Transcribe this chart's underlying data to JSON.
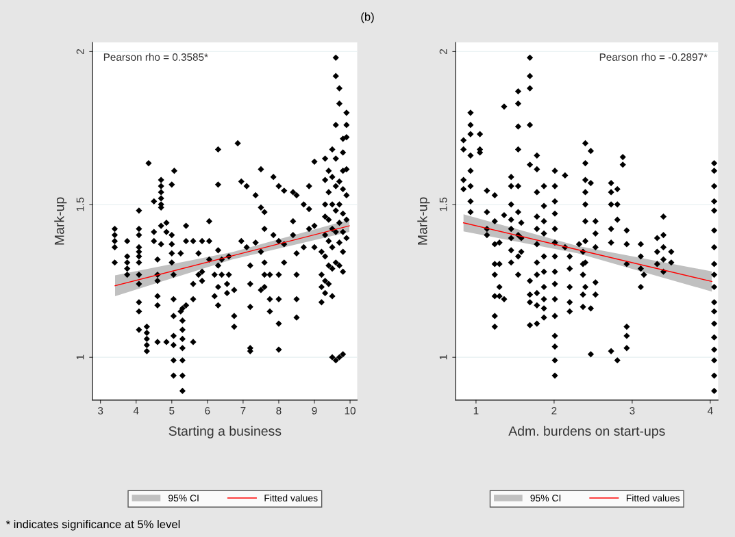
{
  "chart_data": [
    {
      "type": "scatter",
      "title": "(b)",
      "xlabel": "Starting a business",
      "ylabel": "Mark-up",
      "xlim": [
        2.78,
        10.2
      ],
      "xticks": [
        3,
        4,
        5,
        6,
        7,
        8,
        9,
        10
      ],
      "ylim": [
        0.86,
        2.03
      ],
      "yticks": [
        1,
        1.5,
        2
      ],
      "grid": "y",
      "legend": "bottom",
      "legend_title": "95% CI",
      "annotations": [
        "Pearson rho = 0.3585*",
        "* indicates significance at 5% level"
      ],
      "series": [
        {
          "marker": "diamond",
          "color": "#000000",
          "x": [
            3.4,
            3.4,
            3.4,
            3.4,
            3.4,
            3.75,
            3.75,
            3.75,
            3.75,
            3.75,
            4.08,
            4.08,
            4.08,
            4.08,
            4.08,
            4.08,
            4.08,
            4.08,
            4.08,
            4.08,
            4.08,
            4.08,
            4.3,
            4.3,
            4.3,
            4.3,
            4.3,
            4.35,
            4.5,
            4.5,
            4.5,
            4.6,
            4.6,
            4.6,
            4.6,
            4.6,
            4.6,
            4.7,
            4.7,
            4.7,
            4.7,
            4.7,
            4.7,
            4.7,
            4.7,
            4.85,
            4.85,
            4.85,
            5.0,
            5.0,
            5.0,
            5.0,
            5.0,
            5.05,
            5.05,
            5.05,
            5.05,
            5.05,
            5.05,
            5.05,
            5.07,
            5.25,
            5.25,
            5.3,
            5.3,
            5.3,
            5.3,
            5.3,
            5.3,
            5.3,
            5.3,
            5.4,
            5.4,
            5.4,
            5.6,
            5.6,
            5.6,
            5.6,
            5.75,
            5.75,
            5.85,
            5.85,
            5.85,
            6.05,
            6.05,
            6.05,
            6.2,
            6.2,
            6.3,
            6.3,
            6.3,
            6.3,
            6.3,
            6.3,
            6.4,
            6.4,
            6.55,
            6.55,
            6.6,
            6.6,
            6.75,
            6.75,
            6.75,
            6.85,
            6.95,
            6.95,
            7.1,
            7.1,
            7.2,
            7.2,
            7.2,
            7.2,
            7.2,
            7.35,
            7.35,
            7.5,
            7.5,
            7.5,
            7.5,
            7.6,
            7.6,
            7.6,
            7.6,
            7.6,
            7.75,
            7.75,
            7.75,
            7.85,
            7.85,
            8.0,
            8.0,
            8.0,
            8.0,
            8.0,
            8.0,
            8.15,
            8.15,
            8.15,
            8.4,
            8.4,
            8.4,
            8.5,
            8.5,
            8.5,
            8.5,
            8.5,
            8.7,
            8.7,
            8.85,
            8.85,
            8.85,
            9.0,
            9.0,
            9.0,
            9.2,
            9.2,
            9.2,
            9.2,
            9.3,
            9.3,
            9.3,
            9.3,
            9.3,
            9.3,
            9.3,
            9.3,
            9.4,
            9.4,
            9.4,
            9.4,
            9.4,
            9.4,
            9.5,
            9.5,
            9.5,
            9.5,
            9.5,
            9.5,
            9.5,
            9.5,
            9.6,
            9.6,
            9.6,
            9.6,
            9.6,
            9.6,
            9.6,
            9.6,
            9.6,
            9.7,
            9.7,
            9.7,
            9.7,
            9.7,
            9.7,
            9.7,
            9.7,
            9.8,
            9.8,
            9.8,
            9.8,
            9.8,
            9.8,
            9.8,
            9.8,
            9.8,
            9.9,
            9.9,
            9.9,
            9.9,
            9.9,
            9.9,
            9.9
          ],
          "values": [
            1.42,
            1.4,
            1.38,
            1.36,
            1.31,
            1.38,
            1.33,
            1.31,
            1.29,
            1.27,
            1.48,
            1.42,
            1.4,
            1.36,
            1.345,
            1.33,
            1.31,
            1.27,
            1.24,
            1.18,
            1.15,
            1.09,
            1.1,
            1.08,
            1.06,
            1.04,
            1.02,
            1.635,
            1.51,
            1.41,
            1.38,
            1.32,
            1.27,
            1.25,
            1.2,
            1.17,
            1.05,
            1.58,
            1.56,
            1.54,
            1.52,
            1.5,
            1.49,
            1.43,
            1.37,
            1.44,
            1.41,
            1.05,
            1.565,
            1.4,
            1.37,
            1.34,
            1.31,
            1.27,
            1.19,
            1.135,
            1.07,
            1.04,
            0.99,
            0.94,
            1.61,
            1.34,
            1.15,
            1.16,
            1.12,
            1.09,
            1.06,
            1.03,
            0.99,
            0.94,
            0.89,
            1.43,
            1.38,
            1.17,
            1.38,
            1.24,
            1.19,
            1.05,
            1.34,
            1.27,
            1.38,
            1.28,
            1.25,
            1.445,
            1.38,
            1.32,
            1.27,
            1.2,
            1.68,
            1.565,
            1.35,
            1.3,
            1.23,
            1.17,
            1.32,
            1.27,
            1.24,
            1.21,
            1.33,
            1.27,
            1.22,
            1.135,
            1.1,
            1.7,
            1.575,
            1.38,
            1.56,
            1.36,
            1.3,
            1.24,
            1.165,
            1.03,
            1.02,
            1.53,
            1.375,
            1.615,
            1.49,
            1.345,
            1.22,
            1.475,
            1.42,
            1.31,
            1.27,
            1.23,
            1.27,
            1.19,
            1.15,
            1.59,
            1.4,
            1.56,
            1.38,
            1.27,
            1.19,
            1.11,
            1.025,
            1.545,
            1.37,
            1.31,
            1.54,
            1.445,
            1.4,
            1.53,
            1.34,
            1.27,
            1.19,
            1.13,
            1.5,
            1.36,
            1.56,
            1.485,
            1.42,
            1.64,
            1.43,
            1.36,
            1.345,
            1.27,
            1.23,
            1.18,
            1.65,
            1.58,
            1.5,
            1.46,
            1.4,
            1.33,
            1.25,
            1.21,
            1.61,
            1.54,
            1.45,
            1.38,
            1.3,
            1.24,
            1.68,
            1.59,
            1.5,
            1.42,
            1.36,
            1.29,
            1.2,
            1.0,
            1.98,
            1.92,
            1.76,
            1.65,
            1.56,
            1.48,
            1.41,
            1.31,
            0.99,
            1.88,
            1.83,
            1.575,
            1.5,
            1.44,
            1.375,
            1.3,
            1.0,
            1.715,
            1.67,
            1.61,
            1.55,
            1.47,
            1.41,
            1.345,
            1.28,
            1.01,
            1.8,
            1.76,
            1.72,
            1.615,
            1.53,
            1.45,
            1.39
          ]
        },
        {
          "type": "line",
          "name": "Fitted values",
          "color": "#ff0000",
          "x": [
            3.41,
            6.7,
            9.98
          ],
          "values": [
            1.234,
            1.332,
            1.43
          ],
          "lower": [
            1.2,
            1.32,
            1.41
          ],
          "upper": [
            1.268,
            1.344,
            1.45
          ]
        }
      ]
    },
    {
      "type": "scatter",
      "xlabel": "Adm. burdens on start-ups",
      "ylabel": "Mark-up",
      "xlim": [
        0.74,
        4.1
      ],
      "xticks": [
        1,
        2,
        3,
        4
      ],
      "ylim": [
        0.86,
        2.03
      ],
      "yticks": [
        1,
        1.5,
        2
      ],
      "grid": "y",
      "legend": "bottom",
      "legend_title": "95% CI",
      "annotations": [
        "Pearson rho = -0.2897*"
      ],
      "series": [
        {
          "marker": "diamond",
          "color": "#000000",
          "x": [
            0.84,
            0.84,
            0.84,
            0.84,
            0.93,
            0.93,
            0.93,
            0.93,
            0.93,
            0.93,
            0.93,
            0.93,
            1.05,
            1.05,
            1.05,
            1.14,
            1.14,
            1.14,
            1.14,
            1.24,
            1.24,
            1.24,
            1.24,
            1.24,
            1.24,
            1.24,
            1.24,
            1.3,
            1.3,
            1.3,
            1.3,
            1.36,
            1.36,
            1.36,
            1.45,
            1.45,
            1.45,
            1.45,
            1.45,
            1.45,
            1.45,
            1.45,
            1.54,
            1.54,
            1.54,
            1.54,
            1.54,
            1.54,
            1.54,
            1.54,
            1.54,
            1.58,
            1.58,
            1.58,
            1.69,
            1.69,
            1.69,
            1.69,
            1.69,
            1.69,
            1.69,
            1.69,
            1.69,
            1.78,
            1.78,
            1.78,
            1.78,
            1.78,
            1.78,
            1.78,
            1.78,
            1.78,
            1.78,
            1.78,
            1.87,
            1.87,
            1.87,
            1.87,
            1.87,
            1.87,
            1.87,
            1.87,
            1.87,
            1.87,
            2.01,
            2.01,
            2.01,
            2.01,
            2.01,
            2.01,
            2.01,
            2.01,
            2.01,
            2.01,
            2.01,
            2.01,
            2.01,
            2.01,
            2.01,
            2.14,
            2.14,
            2.2,
            2.2,
            2.2,
            2.2,
            2.2,
            2.32,
            2.37,
            2.37,
            2.37,
            2.37,
            2.37,
            2.4,
            2.4,
            2.4,
            2.4,
            2.4,
            2.4,
            2.4,
            2.4,
            2.4,
            2.47,
            2.47,
            2.47,
            2.47,
            2.53,
            2.53,
            2.53,
            2.53,
            2.53,
            2.73,
            2.73,
            2.73,
            2.73,
            2.73,
            2.73,
            2.81,
            2.81,
            2.81,
            2.81,
            2.88,
            2.88,
            2.93,
            2.93,
            2.93,
            2.93,
            2.93,
            2.93,
            3.11,
            3.11,
            3.11,
            3.11,
            3.15,
            3.32,
            3.32,
            3.32,
            3.4,
            3.4,
            3.4,
            3.4,
            3.4,
            3.5,
            3.5,
            4.05,
            4.05,
            4.05,
            4.05,
            4.05,
            4.05,
            4.05,
            4.05,
            4.05,
            4.05,
            4.05,
            4.05,
            4.05,
            4.05,
            4.05,
            4.05,
            4.05,
            4.05
          ],
          "values": [
            1.71,
            1.68,
            1.58,
            1.55,
            1.8,
            1.76,
            1.73,
            1.66,
            1.61,
            1.56,
            1.51,
            1.475,
            1.73,
            1.68,
            1.67,
            1.545,
            1.475,
            1.42,
            1.4,
            1.53,
            1.445,
            1.37,
            1.305,
            1.27,
            1.2,
            1.135,
            1.1,
            1.375,
            1.305,
            1.23,
            1.2,
            1.82,
            1.465,
            1.19,
            1.59,
            1.56,
            1.5,
            1.45,
            1.42,
            1.39,
            1.35,
            1.31,
            1.87,
            1.83,
            1.755,
            1.68,
            1.56,
            1.475,
            1.4,
            1.33,
            1.27,
            1.44,
            1.39,
            1.345,
            1.98,
            1.92,
            1.88,
            1.76,
            1.63,
            1.25,
            1.205,
            1.18,
            1.105,
            1.66,
            1.615,
            1.54,
            1.46,
            1.42,
            1.37,
            1.31,
            1.27,
            1.21,
            1.17,
            1.11,
            1.56,
            1.495,
            1.445,
            1.405,
            1.33,
            1.28,
            1.23,
            1.19,
            1.16,
            1.13,
            1.61,
            1.56,
            1.51,
            1.47,
            1.42,
            1.375,
            1.33,
            1.28,
            1.24,
            1.19,
            1.135,
            1.07,
            1.035,
            0.99,
            0.94,
            1.595,
            1.36,
            1.33,
            1.29,
            1.23,
            1.18,
            1.15,
            1.37,
            1.345,
            1.305,
            1.27,
            1.205,
            1.165,
            1.7,
            1.635,
            1.58,
            1.54,
            1.5,
            1.445,
            1.38,
            1.31,
            1.23,
            1.675,
            1.57,
            1.16,
            1.01,
            1.445,
            1.405,
            1.36,
            1.245,
            1.205,
            1.57,
            1.54,
            1.5,
            1.42,
            1.375,
            1.02,
            1.55,
            1.5,
            1.45,
            0.99,
            1.655,
            1.63,
            1.415,
            1.37,
            1.305,
            1.1,
            1.07,
            1.03,
            1.37,
            1.33,
            1.29,
            1.23,
            1.27,
            1.39,
            1.345,
            1.305,
            1.46,
            1.4,
            1.36,
            1.32,
            1.28,
            1.345,
            1.31,
            1.635,
            1.61,
            1.56,
            1.51,
            1.48,
            1.415,
            1.36,
            1.305,
            1.27,
            1.23,
            1.18,
            1.15,
            1.11,
            1.065,
            1.025,
            0.99,
            0.94,
            0.89
          ]
        },
        {
          "type": "line",
          "name": "Fitted values",
          "color": "#ff0000",
          "x": [
            0.84,
            2.3,
            4.02
          ],
          "values": [
            1.44,
            1.352,
            1.248
          ],
          "lower": [
            1.412,
            1.34,
            1.215
          ],
          "upper": [
            1.468,
            1.364,
            1.281
          ]
        }
      ]
    }
  ]
}
